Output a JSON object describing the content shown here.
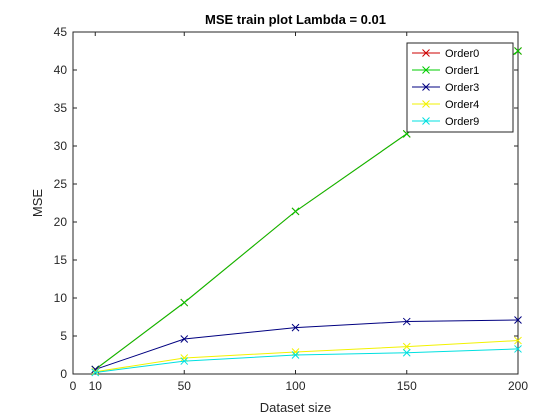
{
  "chart_data": {
    "type": "line",
    "title": "MSE train plot Lambda = 0.01",
    "xlabel": "Dataset size",
    "ylabel": "MSE",
    "xlim": [
      0,
      200
    ],
    "ylim": [
      0,
      45
    ],
    "xticks": [
      0,
      10,
      50,
      100,
      150,
      200
    ],
    "yticks": [
      0,
      5,
      10,
      15,
      20,
      25,
      30,
      35,
      40,
      45
    ],
    "x": [
      10,
      50,
      100,
      150,
      200
    ],
    "marker": "x",
    "grid": false,
    "legend_position": "top-right",
    "series": [
      {
        "name": "Order0",
        "color": "#cc0000",
        "values": [
          0.6,
          9.4,
          21.4,
          31.6,
          42.5
        ]
      },
      {
        "name": "Order1",
        "color": "#00cc00",
        "values": [
          0.6,
          9.4,
          21.4,
          31.6,
          42.5
        ]
      },
      {
        "name": "Order3",
        "color": "#000080",
        "values": [
          0.6,
          4.6,
          6.1,
          6.9,
          7.1
        ]
      },
      {
        "name": "Order4",
        "color": "#f2f200",
        "values": [
          0.3,
          2.1,
          2.9,
          3.6,
          4.4
        ]
      },
      {
        "name": "Order9",
        "color": "#00e0e0",
        "values": [
          0.2,
          1.7,
          2.5,
          2.8,
          3.3
        ]
      }
    ]
  }
}
